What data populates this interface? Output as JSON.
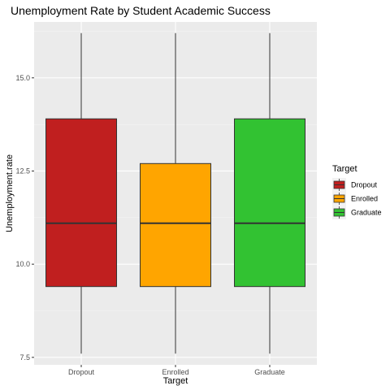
{
  "chart_data": {
    "type": "boxplot",
    "title": "Unemployment Rate by Student Academic Success",
    "xlabel": "Target",
    "ylabel": "Unemployment.rate",
    "categories": [
      "Dropout",
      "Enrolled",
      "Graduate"
    ],
    "colors": [
      "#C01F1F",
      "#FFA500",
      "#32C232"
    ],
    "boxes": [
      {
        "name": "Dropout",
        "min": 7.6,
        "q1": 9.4,
        "median": 11.1,
        "q3": 13.9,
        "max": 16.2
      },
      {
        "name": "Enrolled",
        "min": 7.6,
        "q1": 9.4,
        "median": 11.1,
        "q3": 12.7,
        "max": 16.2
      },
      {
        "name": "Graduate",
        "min": 7.6,
        "q1": 9.4,
        "median": 11.1,
        "q3": 13.9,
        "max": 16.2
      }
    ],
    "ylim": [
      7.3,
      16.5
    ],
    "yticks": [
      7.5,
      10.0,
      12.5,
      15.0
    ],
    "ytick_labels": [
      "7.5",
      "10.0",
      "12.5",
      "15.0"
    ],
    "grid": true,
    "legend": {
      "title": "Target",
      "placement": "right",
      "entries": [
        "Dropout",
        "Enrolled",
        "Graduate"
      ]
    }
  }
}
